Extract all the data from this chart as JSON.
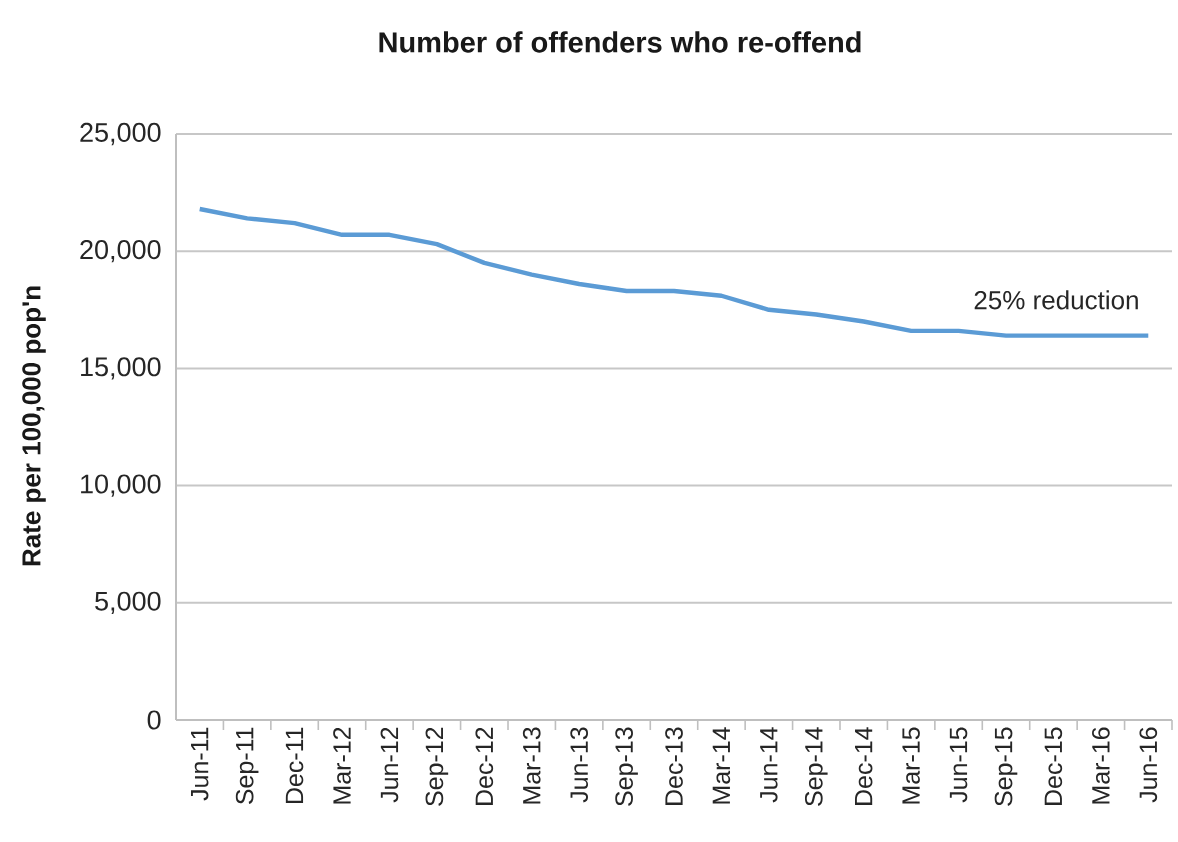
{
  "chart_data": {
    "type": "line",
    "title": "Number of offenders who re-offend",
    "ylabel": "Rate per 100,000 pop'n",
    "categories": [
      "Jun-11",
      "Sep-11",
      "Dec-11",
      "Mar-12",
      "Jun-12",
      "Sep-12",
      "Dec-12",
      "Mar-13",
      "Jun-13",
      "Sep-13",
      "Dec-13",
      "Mar-14",
      "Jun-14",
      "Sep-14",
      "Dec-14",
      "Mar-15",
      "Jun-15",
      "Sep-15",
      "Dec-15",
      "Mar-16",
      "Jun-16"
    ],
    "series": [
      {
        "color": "#5b9bd5",
        "values": [
          21800,
          21400,
          21200,
          20700,
          20700,
          20300,
          19500,
          19000,
          18600,
          18300,
          18300,
          18100,
          17500,
          17300,
          17000,
          16600,
          16600,
          16400,
          16400,
          16400,
          16400
        ]
      }
    ],
    "ylim": [
      0,
      25000
    ],
    "yticks": [
      0,
      {
        "value": 5000,
        "label": "5,000"
      },
      {
        "value": 10000,
        "label": "10,000"
      },
      {
        "value": 15000,
        "label": "15,000"
      },
      {
        "value": 20000,
        "label": "20,000"
      },
      {
        "value": 25000,
        "label": "25,000"
      }
    ],
    "grid": "y",
    "marker": "none",
    "line_style": "solid",
    "annotations": [
      "25% reduction"
    ]
  }
}
